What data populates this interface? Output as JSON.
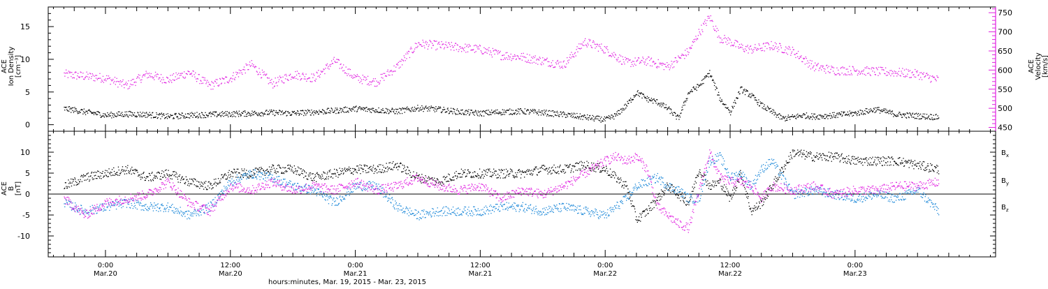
{
  "chart_data": [
    {
      "type": "scatter",
      "panel": "top",
      "left_axis": {
        "label_lines": [
          "ACE",
          "Ion Density",
          "[cm⁻³]"
        ],
        "range": [
          -1,
          18
        ],
        "ticks": [
          0,
          5,
          10,
          15
        ],
        "color": "#000000"
      },
      "right_axis": {
        "label_lines": [
          "ACE",
          "Velocity",
          "[km/s]"
        ],
        "range": [
          440,
          765
        ],
        "ticks": [
          450,
          500,
          550,
          600,
          650,
          700,
          750
        ],
        "color": "#e020e0"
      },
      "series": [
        {
          "name": "",
          "axis": "left",
          "color": "#000000",
          "x_hours": [
            -4,
            -3,
            -2,
            -1,
            0,
            2,
            4,
            6,
            8,
            10,
            12,
            14,
            16,
            18,
            20,
            22,
            24,
            26,
            28,
            30,
            32,
            34,
            36,
            38,
            40,
            42,
            44,
            46,
            48,
            49,
            50,
            51,
            52,
            53,
            54,
            55,
            56,
            57,
            58,
            59,
            60,
            61,
            62,
            63,
            64,
            65,
            66,
            67,
            68,
            70,
            72,
            74,
            76,
            78,
            80
          ],
          "values": [
            2.5,
            2.3,
            2.0,
            1.8,
            1.5,
            1.7,
            1.6,
            1.3,
            1.5,
            1.6,
            1.7,
            1.8,
            1.9,
            1.8,
            2.0,
            2.2,
            2.5,
            2.3,
            2.1,
            2.6,
            2.4,
            2.0,
            1.8,
            2.0,
            2.1,
            1.9,
            1.6,
            1.2,
            0.8,
            1.5,
            3.0,
            5.0,
            4.0,
            3.5,
            2.5,
            1.0,
            5.0,
            6.0,
            8.0,
            4.0,
            2.0,
            5.5,
            4.5,
            3.0,
            2.0,
            1.0,
            1.2,
            1.5,
            1.3,
            1.5,
            1.8,
            2.4,
            1.6,
            1.4,
            1.2
          ]
        },
        {
          "name": "",
          "axis": "right",
          "color": "#e020e0",
          "x_hours": [
            -4,
            -2,
            0,
            2,
            4,
            6,
            8,
            10,
            12,
            14,
            16,
            18,
            20,
            22,
            24,
            25,
            26,
            28,
            30,
            32,
            34,
            36,
            38,
            40,
            41,
            42,
            44,
            46,
            48,
            50,
            52,
            54,
            56,
            57,
            58,
            59,
            60,
            61,
            62,
            63,
            64,
            66,
            68,
            70,
            72,
            74,
            76,
            78,
            80
          ],
          "values": [
            590,
            585,
            580,
            560,
            590,
            575,
            595,
            560,
            580,
            615,
            565,
            590,
            580,
            625,
            580,
            575,
            570,
            610,
            670,
            665,
            660,
            655,
            640,
            635,
            630,
            625,
            615,
            675,
            655,
            620,
            625,
            610,
            650,
            700,
            740,
            685,
            675,
            660,
            655,
            660,
            665,
            650,
            610,
            600,
            600,
            597,
            595,
            590,
            575
          ]
        }
      ]
    },
    {
      "type": "scatter",
      "panel": "bottom",
      "left_axis": {
        "label_lines": [
          "ACE",
          "B",
          "[nT]"
        ],
        "range": [
          -15,
          15
        ],
        "ticks": [
          -10,
          -5,
          0,
          5,
          10
        ],
        "zero_line": true
      },
      "legend": {
        "placement": "right",
        "entries": [
          {
            "base": "B",
            "sub": "x",
            "color": "#000000"
          },
          {
            "base": "B",
            "sub": "y",
            "color": "#1a87d8"
          },
          {
            "base": "B",
            "sub": "z",
            "color": "#e020e0"
          }
        ]
      },
      "series": [
        {
          "name": "Bx",
          "color": "#000000",
          "x_hours": [
            -4,
            -2,
            0,
            2,
            4,
            6,
            8,
            10,
            12,
            14,
            16,
            18,
            20,
            22,
            24,
            26,
            28,
            30,
            32,
            34,
            36,
            38,
            40,
            42,
            44,
            46,
            48,
            49,
            50,
            51,
            52,
            53,
            54,
            55,
            56,
            57,
            58,
            59,
            60,
            61,
            62,
            63,
            64,
            66,
            68,
            70,
            72,
            74,
            76,
            78,
            80
          ],
          "values": [
            2,
            4,
            5,
            6,
            4,
            5,
            3,
            2,
            5,
            5,
            6,
            6,
            4,
            5,
            6,
            6,
            7,
            4,
            3,
            5,
            5,
            5,
            5,
            6,
            6,
            7,
            6,
            4,
            2,
            -6,
            -4,
            -1,
            2,
            0,
            -2,
            6,
            2,
            3,
            -1,
            5,
            -4,
            -2,
            2,
            10,
            9,
            9,
            8,
            8,
            8,
            7,
            6
          ]
        },
        {
          "name": "By",
          "color": "#1a87d8",
          "x_hours": [
            -4,
            -2,
            0,
            2,
            4,
            6,
            8,
            10,
            12,
            14,
            16,
            18,
            20,
            22,
            24,
            26,
            28,
            30,
            32,
            34,
            36,
            38,
            40,
            42,
            44,
            46,
            48,
            49,
            50,
            51,
            52,
            53,
            54,
            55,
            56,
            57,
            58,
            59,
            60,
            61,
            62,
            63,
            64,
            66,
            68,
            70,
            72,
            74,
            76,
            78,
            80
          ],
          "values": [
            -2,
            -4,
            -3,
            -2,
            -3,
            -3,
            -5,
            -3,
            3,
            5,
            4,
            2,
            1,
            -2,
            2,
            2,
            -3,
            -5,
            -4,
            -4,
            -4,
            -3,
            -3,
            -4,
            -3,
            -4,
            -5,
            -3,
            -1,
            2,
            3,
            4,
            2,
            1,
            -1,
            -1,
            8,
            9,
            4,
            5,
            2,
            6,
            8,
            0,
            1,
            0,
            -1,
            0,
            -1,
            1,
            -4
          ]
        },
        {
          "name": "Bz",
          "color": "#e020e0",
          "x_hours": [
            -4,
            -2,
            0,
            2,
            4,
            6,
            8,
            10,
            12,
            14,
            16,
            18,
            20,
            22,
            24,
            26,
            28,
            30,
            32,
            34,
            36,
            38,
            40,
            42,
            44,
            46,
            48,
            49,
            50,
            51,
            52,
            53,
            54,
            55,
            56,
            57,
            58,
            59,
            60,
            61,
            62,
            63,
            64,
            66,
            68,
            70,
            72,
            74,
            76,
            78,
            80
          ],
          "values": [
            -1,
            -5,
            -2,
            -1,
            0,
            3,
            -2,
            -4,
            2,
            1,
            3,
            1,
            2,
            1,
            3,
            1,
            2,
            4,
            2,
            1,
            2,
            -1,
            1,
            0,
            2,
            5,
            8,
            9,
            8,
            9,
            6,
            -3,
            -5,
            -7,
            -8,
            1,
            10,
            4,
            3,
            3,
            2,
            -1,
            2,
            1,
            2,
            0,
            1,
            1,
            2,
            2,
            3
          ]
        }
      ]
    }
  ],
  "x_axis": {
    "ticks": [
      {
        "time": "0:00",
        "date": "Mar.20"
      },
      {
        "time": "12:00",
        "date": "Mar.20"
      },
      {
        "time": "0:00",
        "date": "Mar.21"
      },
      {
        "time": "12:00",
        "date": "Mar.21"
      },
      {
        "time": "0:00",
        "date": "Mar.22"
      },
      {
        "time": "12:00",
        "date": "Mar.22"
      },
      {
        "time": "0:00",
        "date": "Mar.23"
      }
    ],
    "label": "hours:minutes, Mar. 19, 2015 - Mar. 23, 2015"
  }
}
